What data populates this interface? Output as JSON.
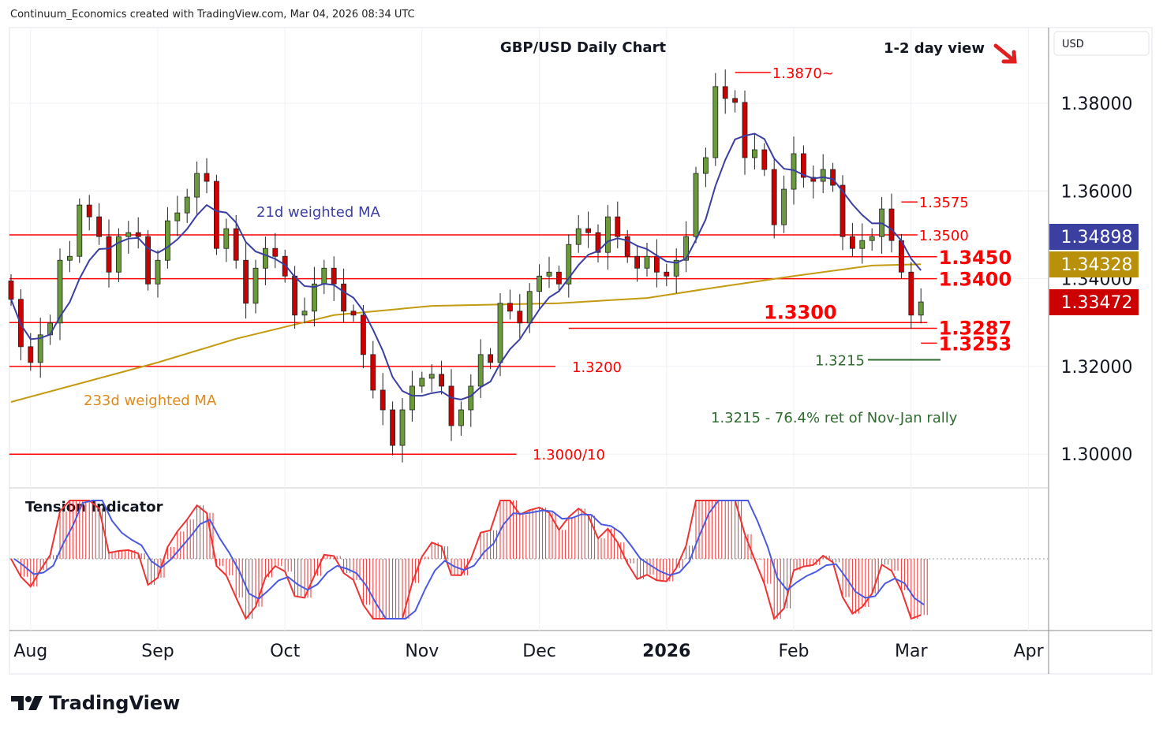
{
  "header": {
    "credit": "Continuum_Economics created with TradingView.com, Mar 04, 2026 08:34 UTC"
  },
  "footer": {
    "logo_text": "TradingView"
  },
  "chart_data": {
    "type": "candlestick",
    "title": "GBP/USD Daily Chart",
    "subtitle": "1-2 day view",
    "view_direction": "down",
    "currency": "USD",
    "ylim": [
      1.288,
      1.393
    ],
    "y_ticks": [
      "1.38000",
      "1.36000",
      "1.34000",
      "1.32000",
      "1.30000"
    ],
    "y_tick_values": [
      1.38,
      1.36,
      1.34,
      1.32,
      1.3
    ],
    "x_ticks": [
      {
        "label": "Aug",
        "bar": 2,
        "bold": false
      },
      {
        "label": "Sep",
        "bar": 15,
        "bold": false
      },
      {
        "label": "Oct",
        "bar": 28,
        "bold": false
      },
      {
        "label": "Nov",
        "bar": 42,
        "bold": false
      },
      {
        "label": "Dec",
        "bar": 54,
        "bold": false
      },
      {
        "label": "2026",
        "bar": 67,
        "bold": true
      },
      {
        "label": "Feb",
        "bar": 80,
        "bold": false
      },
      {
        "label": "Mar",
        "bar": 92,
        "bold": false
      },
      {
        "label": "Apr",
        "bar": 104,
        "bold": false
      }
    ],
    "closes": [
      1.3353,
      1.3245,
      1.3209,
      1.3272,
      1.3299,
      1.3442,
      1.3451,
      1.3568,
      1.3541,
      1.3496,
      1.3415,
      1.3496,
      1.3505,
      1.3496,
      1.3388,
      1.3442,
      1.3532,
      1.355,
      1.3586,
      1.364,
      1.3622,
      1.3469,
      1.3514,
      1.3442,
      1.3344,
      1.3424,
      1.3469,
      1.3451,
      1.3406,
      1.3317,
      1.3326,
      1.3388,
      1.3424,
      1.3388,
      1.3326,
      1.3317,
      1.3227,
      1.3146,
      1.3101,
      1.302,
      1.3101,
      1.3155,
      1.3173,
      1.3182,
      1.3155,
      1.3065,
      1.3101,
      1.3155,
      1.3227,
      1.3209,
      1.3344,
      1.3326,
      1.3299,
      1.3371,
      1.3406,
      1.3415,
      1.3388,
      1.3478,
      1.3514,
      1.3505,
      1.346,
      1.3541,
      1.3496,
      1.3451,
      1.3424,
      1.3451,
      1.3415,
      1.3406,
      1.3442,
      1.3496,
      1.364,
      1.3676,
      1.3838,
      1.3811,
      1.3802,
      1.3676,
      1.3694,
      1.3649,
      1.3523,
      1.3604,
      1.3685,
      1.3631,
      1.3622,
      1.3649,
      1.3613,
      1.3496,
      1.3469,
      1.3487,
      1.3496,
      1.3559,
      1.3487,
      1.3415,
      1.3317,
      1.3347
    ],
    "first_open": 1.3395,
    "total_bars_axis": 106,
    "ma233": [
      {
        "bar": 0,
        "v": 1.3119
      },
      {
        "bar": 15,
        "v": 1.3209
      },
      {
        "bar": 23,
        "v": 1.3263
      },
      {
        "bar": 33,
        "v": 1.3317
      },
      {
        "bar": 43,
        "v": 1.3338
      },
      {
        "bar": 56,
        "v": 1.3344
      },
      {
        "bar": 65,
        "v": 1.3356
      },
      {
        "bar": 72,
        "v": 1.338
      },
      {
        "bar": 80,
        "v": 1.3406
      },
      {
        "bar": 88,
        "v": 1.343
      },
      {
        "bar": 93,
        "v": 1.3433
      }
    ],
    "ma_labels": {
      "wma21": "21d weighted MA",
      "wma233": "233d weighted MA"
    },
    "price_badges": [
      {
        "value": "1.34898",
        "color": "#3b3fa0"
      },
      {
        "value": "1.34328",
        "color": "#b8900a"
      },
      {
        "value": "1.33472",
        "color": "#cc0000"
      }
    ],
    "levels": [
      {
        "label": "1.3870~",
        "value": 1.387,
        "from": 74,
        "to": 77,
        "size": "small"
      },
      {
        "label": "1.3575",
        "value": 1.3575,
        "from": 91,
        "to": 92,
        "size": "small"
      },
      {
        "label": "1.3500",
        "value": 1.35,
        "from": -1,
        "to": 92,
        "size": "small"
      },
      {
        "label": "1.3450",
        "value": 1.345,
        "from": 57,
        "to": 94,
        "size": "big"
      },
      {
        "label": "1.3400",
        "value": 1.34,
        "from": -1,
        "to": 94,
        "size": "big"
      },
      {
        "label": "1.3300",
        "value": 1.33,
        "from": -1,
        "to": 93,
        "size": "big"
      },
      {
        "label": "1.3287",
        "value": 1.3287,
        "from": 57,
        "to": 94,
        "size": "big"
      },
      {
        "label": "1.3253",
        "value": 1.3253,
        "from": 93,
        "to": 94,
        "size": "big"
      },
      {
        "label": "1.3200",
        "value": 1.32,
        "from": -1,
        "to": 55,
        "size": "small"
      },
      {
        "label": "1.3000/10",
        "value": 1.3,
        "from": -1,
        "to": 51,
        "size": "small"
      }
    ],
    "support_note": {
      "label": "1.3215",
      "value": 1.3215,
      "annotation": "1.3215 - 76.4% ret of Nov-Jan rally"
    },
    "indicator": {
      "title": "Tension Indicator"
    },
    "colors": {
      "up": "#6a9a3a",
      "down": "#cc0000",
      "level": "#ff0000",
      "wma21": "#3b3fa0",
      "wma233": "#c49a10",
      "support": "#2e6b2e"
    }
  }
}
